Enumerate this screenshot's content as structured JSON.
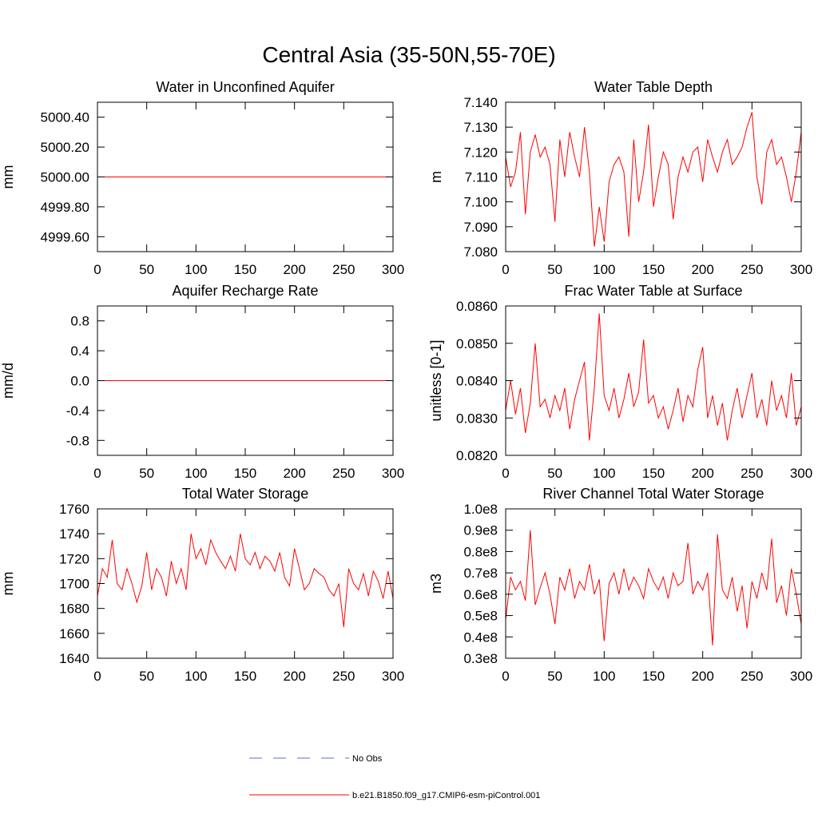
{
  "title": "Central Asia (35-50N,55-70E)",
  "legend": [
    {
      "name": "No Obs",
      "color": "#5b6fd6",
      "dash": true
    },
    {
      "name": "b.e21.B1850.f09_g17.CMIP6-esm-piControl.001",
      "color": "#ff0000",
      "dash": false
    }
  ],
  "chart_data": [
    {
      "type": "line",
      "title": "Water in Unconfined Aquifer",
      "ylabel": "mm",
      "xlim": [
        0,
        300
      ],
      "xticks": [
        0,
        50,
        100,
        150,
        200,
        250,
        300
      ],
      "ylim": [
        4999.5,
        5000.5
      ],
      "yticks": [
        {
          "value": 4999.6,
          "label": "4999.60"
        },
        {
          "value": 4999.8,
          "label": "4999.80"
        },
        {
          "value": 5000,
          "label": "5000.00"
        },
        {
          "value": 5000.2,
          "label": "5000.20"
        },
        {
          "value": 5000.4,
          "label": "5000.40"
        }
      ],
      "x": [
        0,
        300
      ],
      "series": [
        {
          "color": "#ff0000",
          "values": [
            5000,
            5000
          ]
        }
      ]
    },
    {
      "type": "line",
      "title": "Water Table Depth",
      "ylabel": "m",
      "xlim": [
        0,
        300
      ],
      "xticks": [
        0,
        50,
        100,
        150,
        200,
        250,
        300
      ],
      "ylim": [
        7.08,
        7.14
      ],
      "yticks": [
        {
          "value": 7.08,
          "label": "7.080"
        },
        {
          "value": 7.09,
          "label": "7.090"
        },
        {
          "value": 7.1,
          "label": "7.100"
        },
        {
          "value": 7.11,
          "label": "7.110"
        },
        {
          "value": 7.12,
          "label": "7.120"
        },
        {
          "value": 7.13,
          "label": "7.130"
        },
        {
          "value": 7.14,
          "label": "7.140"
        }
      ],
      "x": [
        0,
        5,
        10,
        15,
        20,
        25,
        30,
        35,
        40,
        45,
        50,
        55,
        60,
        65,
        70,
        75,
        80,
        85,
        90,
        95,
        100,
        105,
        110,
        115,
        120,
        125,
        130,
        135,
        140,
        145,
        150,
        155,
        160,
        165,
        170,
        175,
        180,
        185,
        190,
        195,
        200,
        205,
        210,
        215,
        220,
        225,
        230,
        235,
        240,
        245,
        250,
        255,
        260,
        265,
        270,
        275,
        280,
        285,
        290,
        295,
        300
      ],
      "series": [
        {
          "color": "#ff0000",
          "values": [
            7.118,
            7.106,
            7.112,
            7.128,
            7.095,
            7.12,
            7.127,
            7.118,
            7.122,
            7.115,
            7.092,
            7.125,
            7.11,
            7.128,
            7.118,
            7.11,
            7.13,
            7.112,
            7.082,
            7.098,
            7.084,
            7.108,
            7.115,
            7.118,
            7.112,
            7.086,
            7.125,
            7.1,
            7.112,
            7.131,
            7.098,
            7.11,
            7.12,
            7.115,
            7.093,
            7.11,
            7.118,
            7.112,
            7.12,
            7.122,
            7.108,
            7.125,
            7.118,
            7.112,
            7.12,
            7.125,
            7.115,
            7.118,
            7.122,
            7.13,
            7.136,
            7.11,
            7.099,
            7.12,
            7.125,
            7.115,
            7.118,
            7.11,
            7.1,
            7.112,
            7.128
          ]
        }
      ]
    },
    {
      "type": "line",
      "title": "Aquifer Recharge Rate",
      "ylabel": "mm/d",
      "xlim": [
        0,
        300
      ],
      "xticks": [
        0,
        50,
        100,
        150,
        200,
        250,
        300
      ],
      "ylim": [
        -1,
        1
      ],
      "yticks": [
        -0.8,
        -0.4,
        {
          "value": 0,
          "label": "0.0"
        },
        0.4,
        0.8
      ],
      "x": [
        0,
        300
      ],
      "series": [
        {
          "color": "#ff0000",
          "values": [
            0,
            0
          ]
        }
      ]
    },
    {
      "type": "line",
      "title": "Frac Water Table at Surface",
      "ylabel": "unitless [0-1]",
      "xlim": [
        0,
        300
      ],
      "xticks": [
        0,
        50,
        100,
        150,
        200,
        250,
        300
      ],
      "ylim": [
        0.082,
        0.086
      ],
      "yticks": [
        {
          "value": 0.082,
          "label": "0.0820"
        },
        {
          "value": 0.083,
          "label": "0.0830"
        },
        {
          "value": 0.084,
          "label": "0.0840"
        },
        {
          "value": 0.085,
          "label": "0.0850"
        },
        {
          "value": 0.086,
          "label": "0.0860"
        }
      ],
      "x": [
        0,
        5,
        10,
        15,
        20,
        25,
        30,
        35,
        40,
        45,
        50,
        55,
        60,
        65,
        70,
        75,
        80,
        85,
        90,
        95,
        100,
        105,
        110,
        115,
        120,
        125,
        130,
        135,
        140,
        145,
        150,
        155,
        160,
        165,
        170,
        175,
        180,
        185,
        190,
        195,
        200,
        205,
        210,
        215,
        220,
        225,
        230,
        235,
        240,
        245,
        250,
        255,
        260,
        265,
        270,
        275,
        280,
        285,
        290,
        295,
        300
      ],
      "series": [
        {
          "color": "#ff0000",
          "values": [
            0.0832,
            0.084,
            0.0831,
            0.0838,
            0.0826,
            0.0834,
            0.085,
            0.0833,
            0.0835,
            0.083,
            0.0836,
            0.0832,
            0.0838,
            0.0827,
            0.0835,
            0.084,
            0.0845,
            0.0824,
            0.0838,
            0.0858,
            0.0836,
            0.0832,
            0.0838,
            0.083,
            0.0835,
            0.0842,
            0.0833,
            0.0837,
            0.0851,
            0.0834,
            0.0836,
            0.083,
            0.0833,
            0.0827,
            0.0832,
            0.0838,
            0.0829,
            0.0836,
            0.0833,
            0.0843,
            0.0849,
            0.083,
            0.0836,
            0.0828,
            0.0834,
            0.0824,
            0.0832,
            0.0838,
            0.083,
            0.0836,
            0.0842,
            0.083,
            0.0835,
            0.0828,
            0.084,
            0.0832,
            0.0836,
            0.083,
            0.0842,
            0.0828,
            0.0833
          ]
        }
      ]
    },
    {
      "type": "line",
      "title": "Total Water Storage",
      "ylabel": "mm",
      "xlim": [
        0,
        300
      ],
      "xticks": [
        0,
        50,
        100,
        150,
        200,
        250,
        300
      ],
      "ylim": [
        1640,
        1760
      ],
      "yticks": [
        1640,
        1660,
        1680,
        1700,
        1720,
        1740,
        1760
      ],
      "x": [
        0,
        5,
        10,
        15,
        20,
        25,
        30,
        35,
        40,
        45,
        50,
        55,
        60,
        65,
        70,
        75,
        80,
        85,
        90,
        95,
        100,
        105,
        110,
        115,
        120,
        125,
        130,
        135,
        140,
        145,
        150,
        155,
        160,
        165,
        170,
        175,
        180,
        185,
        190,
        195,
        200,
        205,
        210,
        215,
        220,
        225,
        230,
        235,
        240,
        245,
        250,
        255,
        260,
        265,
        270,
        275,
        280,
        285,
        290,
        295,
        300
      ],
      "series": [
        {
          "color": "#ff0000",
          "values": [
            1690,
            1712,
            1705,
            1735,
            1700,
            1695,
            1712,
            1700,
            1685,
            1698,
            1725,
            1695,
            1712,
            1705,
            1690,
            1718,
            1700,
            1712,
            1695,
            1740,
            1720,
            1728,
            1715,
            1735,
            1725,
            1718,
            1712,
            1722,
            1710,
            1740,
            1720,
            1715,
            1725,
            1712,
            1722,
            1718,
            1710,
            1725,
            1705,
            1698,
            1728,
            1712,
            1695,
            1700,
            1712,
            1708,
            1705,
            1695,
            1690,
            1700,
            1665,
            1712,
            1700,
            1695,
            1708,
            1690,
            1710,
            1702,
            1688,
            1710,
            1688
          ]
        }
      ]
    },
    {
      "type": "line",
      "title": "River Channel Total Water Storage",
      "ylabel": "m3",
      "xlim": [
        0,
        300
      ],
      "xticks": [
        0,
        50,
        100,
        150,
        200,
        250,
        300
      ],
      "ylim": [
        30000000,
        100000000
      ],
      "yticks": [
        {
          "value": 30000000,
          "label": "0.3e8"
        },
        {
          "value": 40000000,
          "label": "0.4e8"
        },
        {
          "value": 50000000,
          "label": "0.5e8"
        },
        {
          "value": 60000000,
          "label": "0.6e8"
        },
        {
          "value": 70000000,
          "label": "0.7e8"
        },
        {
          "value": 80000000,
          "label": "0.8e8"
        },
        {
          "value": 90000000,
          "label": "0.9e8"
        },
        {
          "value": 100000000,
          "label": "1.0e8"
        }
      ],
      "x": [
        0,
        5,
        10,
        15,
        20,
        25,
        30,
        35,
        40,
        45,
        50,
        55,
        60,
        65,
        70,
        75,
        80,
        85,
        90,
        95,
        100,
        105,
        110,
        115,
        120,
        125,
        130,
        135,
        140,
        145,
        150,
        155,
        160,
        165,
        170,
        175,
        180,
        185,
        190,
        195,
        200,
        205,
        210,
        215,
        220,
        225,
        230,
        235,
        240,
        245,
        250,
        255,
        260,
        265,
        270,
        275,
        280,
        285,
        290,
        295,
        300
      ],
      "series": [
        {
          "color": "#ff0000",
          "values": [
            48000000,
            68000000,
            62000000,
            66000000,
            57000000,
            90000000,
            55000000,
            63000000,
            70000000,
            60000000,
            46000000,
            68000000,
            62000000,
            72000000,
            58000000,
            66000000,
            62000000,
            74000000,
            60000000,
            67000000,
            38000000,
            65000000,
            70000000,
            60000000,
            72000000,
            62000000,
            68000000,
            64000000,
            58000000,
            72000000,
            66000000,
            62000000,
            68000000,
            58000000,
            70000000,
            64000000,
            66000000,
            84000000,
            60000000,
            66000000,
            62000000,
            70000000,
            36000000,
            88000000,
            62000000,
            58000000,
            68000000,
            52000000,
            64000000,
            44000000,
            66000000,
            58000000,
            70000000,
            62000000,
            86000000,
            56000000,
            64000000,
            50000000,
            72000000,
            60000000,
            46000000
          ]
        }
      ]
    }
  ]
}
